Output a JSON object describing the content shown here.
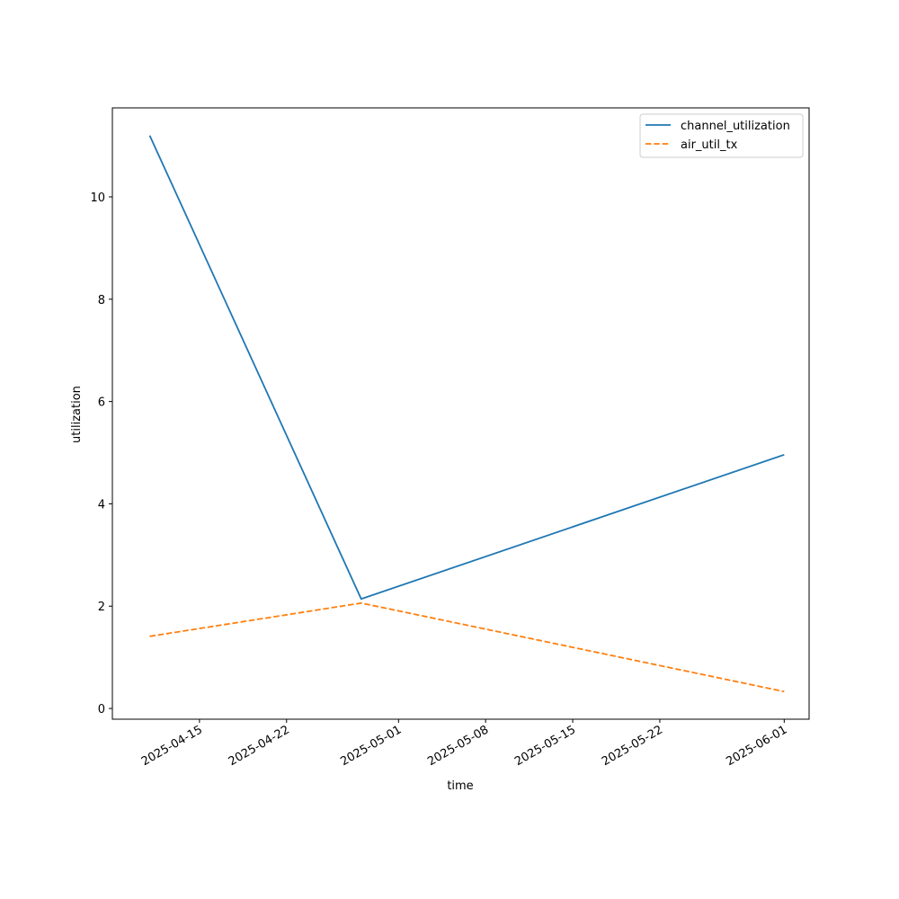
{
  "chart_data": {
    "type": "line",
    "xlabel": "time",
    "ylabel": "utilization",
    "x": [
      "2025-04-11",
      "2025-04-28",
      "2025-06-01"
    ],
    "series": [
      {
        "name": "channel_utilization",
        "color": "#1f77b4",
        "linestyle": "solid",
        "values": [
          11.2,
          2.14,
          4.96
        ]
      },
      {
        "name": "air_util_tx",
        "color": "#ff7f0e",
        "linestyle": "dashed",
        "values": [
          1.41,
          2.06,
          0.33
        ]
      }
    ],
    "xlim": [
      "2025-04-08",
      "2025-06-03"
    ],
    "xticks": [
      "2025-04-15",
      "2025-04-22",
      "2025-05-01",
      "2025-05-08",
      "2025-05-15",
      "2025-05-22",
      "2025-06-01"
    ],
    "ylim": [
      -0.21,
      11.74
    ],
    "yticks": [
      0,
      2,
      4,
      6,
      8,
      10
    ],
    "legend": "upper right"
  }
}
